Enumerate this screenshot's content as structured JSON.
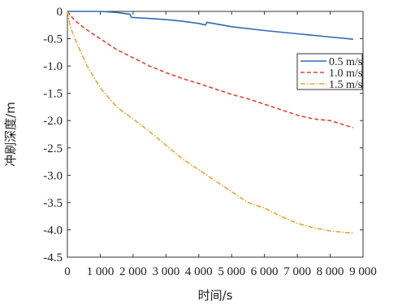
{
  "chart_data": {
    "type": "line",
    "xlabel": "时间/s",
    "ylabel": "冲刷深度/m",
    "xlim": [
      0,
      9000
    ],
    "ylim": [
      -4.5,
      0
    ],
    "x_ticks": [
      0,
      1000,
      2000,
      3000,
      4000,
      5000,
      6000,
      7000,
      8000,
      9000
    ],
    "x_tick_labels": [
      "0",
      "1 000",
      "2 000",
      "3 000",
      "4 000",
      "5 000",
      "6 000",
      "7 000",
      "8 000",
      "9 000"
    ],
    "y_ticks": [
      0,
      -0.5,
      -1.0,
      -1.5,
      -2.0,
      -2.5,
      -3.0,
      -3.5,
      -4.0,
      -4.5
    ],
    "y_tick_labels": [
      "0",
      "-0.5",
      "-1.0",
      "-1.5",
      "-2.0",
      "-2.5",
      "-3.0",
      "-3.5",
      "-4.0",
      "-4.5"
    ],
    "legend_position": "top-right",
    "series": [
      {
        "name": "0.5 m/s",
        "color": "#2e6bb5",
        "dash": "solid",
        "x": [
          0,
          500,
          1000,
          1500,
          1900,
          1950,
          2500,
          3000,
          3500,
          4000,
          4200,
          4250,
          5000,
          6000,
          7000,
          8000,
          8700
        ],
        "y": [
          0,
          0,
          0,
          -0.02,
          -0.05,
          -0.11,
          -0.13,
          -0.15,
          -0.18,
          -0.22,
          -0.25,
          -0.2,
          -0.28,
          -0.35,
          -0.41,
          -0.47,
          -0.51
        ]
      },
      {
        "name": "1.0 m/s",
        "color": "#d9483b",
        "dash": "dashed",
        "x": [
          0,
          200,
          500,
          1000,
          1500,
          2000,
          2500,
          3000,
          3500,
          4000,
          4500,
          5000,
          5500,
          6000,
          6500,
          7000,
          7500,
          8000,
          8700
        ],
        "y": [
          0,
          -0.15,
          -0.3,
          -0.5,
          -0.7,
          -0.85,
          -1.0,
          -1.12,
          -1.23,
          -1.32,
          -1.42,
          -1.52,
          -1.6,
          -1.7,
          -1.8,
          -1.9,
          -1.97,
          -2.0,
          -2.13
        ]
      },
      {
        "name": "1.5 m/s",
        "color": "#e0a83c",
        "dash": "dashdot",
        "x": [
          0,
          100,
          300,
          600,
          1000,
          1500,
          2000,
          2500,
          3000,
          3500,
          4000,
          4500,
          5000,
          5500,
          6000,
          6500,
          7000,
          7500,
          8000,
          8500,
          8700
        ],
        "y": [
          0,
          -0.3,
          -0.6,
          -1.0,
          -1.4,
          -1.75,
          -1.97,
          -2.2,
          -2.45,
          -2.7,
          -2.9,
          -3.1,
          -3.3,
          -3.5,
          -3.6,
          -3.75,
          -3.88,
          -3.96,
          -4.02,
          -4.05,
          -4.06
        ]
      }
    ]
  }
}
